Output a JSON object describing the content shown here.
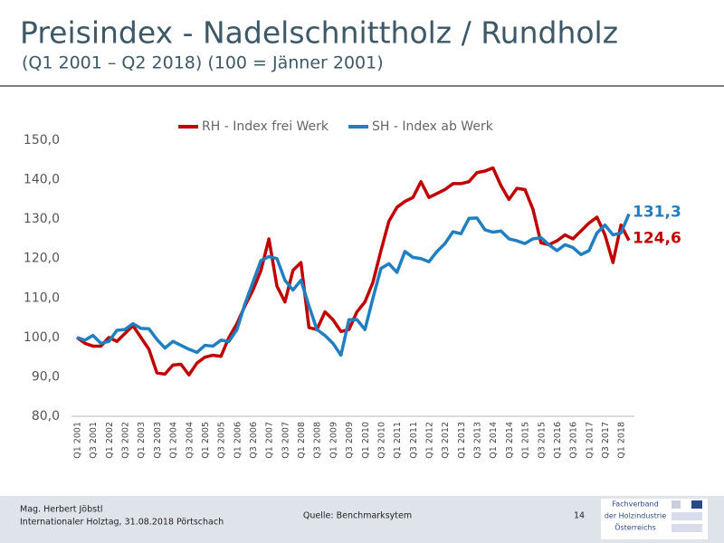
{
  "slide": {
    "title": "Preisindex - Nadelschnittholz / Rundholz",
    "subtitle": "(Q1 2001 – Q2 2018) (100 = Jänner 2001)",
    "footer_author": "Mag. Herbert Jöbstl",
    "footer_event": "Internationaler Holztag, 31.08.2018 Pörtschach",
    "footer_source": "Quelle: Benchmarksytem",
    "page_number": "14",
    "logo_text": [
      "Fachverband",
      "der Holzindustrie",
      "Österreichs"
    ]
  },
  "chart_data": {
    "type": "line",
    "categories": [
      "Q1 2001",
      null,
      "Q3 2001",
      null,
      "Q1 2002",
      null,
      "Q3 2002",
      null,
      "Q1 2003",
      null,
      "Q3 2003",
      null,
      "Q1 2004",
      null,
      "Q3 2004",
      null,
      "Q1 2005",
      null,
      "Q3 2005",
      null,
      "Q1 2006",
      null,
      "Q3 2006",
      null,
      "Q1 2007",
      null,
      "Q3 2007",
      null,
      "Q1 2008",
      null,
      "Q3 2008",
      null,
      "Q1 2009",
      null,
      "Q3 2009",
      null,
      "Q1 2010",
      null,
      "Q3 2010",
      null,
      "Q1 2011",
      null,
      "Q3 2011",
      null,
      "Q1 2012",
      null,
      "Q3 2012",
      null,
      "Q1 2013",
      null,
      "Q3 2013",
      null,
      "Q1 2014",
      null,
      "Q3 2014",
      null,
      "Q1 2015",
      null,
      "Q3 2015",
      null,
      "Q1 2016",
      null,
      "Q3 2016",
      null,
      "Q1 2017",
      null,
      "Q3 2017",
      null,
      "Q1 2018",
      null
    ],
    "series": [
      {
        "name": "RH - Index frei Werk",
        "color": "#c00000",
        "values": [
          100,
          98.5,
          97.8,
          97.8,
          100,
          99,
          101,
          103,
          100,
          97,
          91,
          90.7,
          93,
          93.2,
          90.5,
          93.5,
          95,
          95.5,
          95.2,
          100,
          103.5,
          108,
          112,
          117,
          125,
          113,
          109,
          117,
          119,
          102.5,
          102,
          106.5,
          104.5,
          101.5,
          102,
          106.5,
          109,
          114,
          122,
          129.5,
          133,
          134.5,
          135.5,
          139.5,
          135.5,
          136.5,
          137.5,
          139,
          139,
          139.5,
          141.8,
          142.2,
          143,
          138.5,
          135,
          137.8,
          137.5,
          132.5,
          124,
          123.5,
          124.5,
          126,
          125,
          127,
          129,
          130.5,
          126,
          119,
          128.5,
          124.6
        ],
        "value_labels": [
          null,
          null,
          null,
          null,
          null,
          null,
          null,
          null,
          null,
          null,
          null,
          null,
          null,
          null,
          null,
          null,
          null,
          null,
          null,
          null,
          null,
          null,
          null,
          null,
          null,
          null,
          null,
          null,
          null,
          null,
          null,
          null,
          null,
          null,
          null,
          null,
          null,
          null,
          null,
          null,
          null,
          null,
          null,
          null,
          null,
          null,
          null,
          null,
          null,
          null,
          null,
          null,
          null,
          null,
          null,
          null,
          null,
          null,
          null,
          null,
          null,
          null,
          null,
          null,
          null,
          null,
          null,
          null,
          null,
          "124,6"
        ]
      },
      {
        "name": "SH - Index ab Werk",
        "color": "#1f7fc0",
        "values": [
          100,
          99.3,
          100.5,
          98.5,
          99,
          101.8,
          102,
          103.5,
          102.3,
          102.2,
          99.5,
          97.3,
          99,
          98,
          97,
          96.2,
          98,
          97.8,
          99.3,
          99,
          102,
          108.5,
          114,
          119.5,
          120.5,
          120,
          114.5,
          112,
          114.5,
          108,
          102,
          100.5,
          98.5,
          95.5,
          104.5,
          104.5,
          102,
          110,
          117.5,
          118.7,
          116.5,
          121.8,
          120.3,
          120,
          119.2,
          121.8,
          123.8,
          126.8,
          126.3,
          130.2,
          130.3,
          127.3,
          126.7,
          127,
          125,
          124.5,
          123.8,
          125,
          125.3,
          123.5,
          122,
          123.5,
          122.8,
          121,
          122,
          126.5,
          128.5,
          126,
          126.5,
          131.3
        ],
        "value_labels": [
          null,
          null,
          null,
          null,
          null,
          null,
          null,
          null,
          null,
          null,
          null,
          null,
          null,
          null,
          null,
          null,
          null,
          null,
          null,
          null,
          null,
          null,
          null,
          null,
          null,
          null,
          null,
          null,
          null,
          null,
          null,
          null,
          null,
          null,
          null,
          null,
          null,
          null,
          null,
          null,
          null,
          null,
          null,
          null,
          null,
          null,
          null,
          null,
          null,
          null,
          null,
          null,
          null,
          null,
          null,
          null,
          null,
          null,
          null,
          null,
          null,
          null,
          null,
          null,
          null,
          null,
          null,
          null,
          null,
          "131,3"
        ]
      }
    ],
    "ylim": [
      80,
      150
    ],
    "yticks": [
      {
        "value": 80,
        "label": "80,0"
      },
      {
        "value": 90,
        "label": "90,0"
      },
      {
        "value": 100,
        "label": "100,0"
      },
      {
        "value": 110,
        "label": "110,0"
      },
      {
        "value": 120,
        "label": "120,0"
      },
      {
        "value": 130,
        "label": "130,0"
      },
      {
        "value": 140,
        "label": "140,0"
      },
      {
        "value": 150,
        "label": "150,0"
      }
    ],
    "grid": false,
    "legend": "top"
  }
}
